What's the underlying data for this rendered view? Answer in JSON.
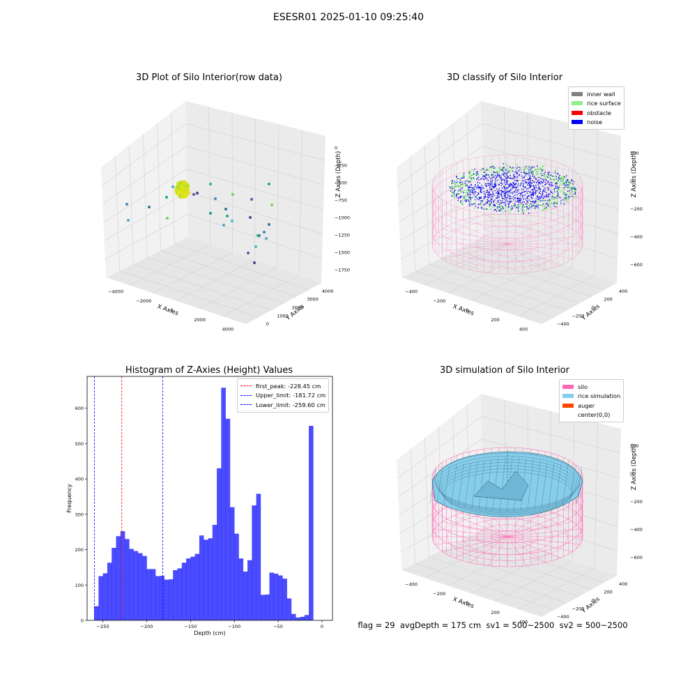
{
  "figure": {
    "title": "ESESR01 2025-01-10 09:25:40",
    "status_line": "flag = 29  avgDepth = 175 cm  sv1 = 500~2500  sv2 = 500~2500"
  },
  "panels": {
    "raw": {
      "title": "3D Plot of Silo Interior(row data)",
      "xlabel": "X Axies",
      "ylabel": "Y Axies",
      "zlabel": "Z Axies (Depth)",
      "xticks": [
        "−4000",
        "−2000",
        "0",
        "2000",
        "4000"
      ],
      "yticks": [
        "0",
        "1000",
        "2000",
        "3000",
        "4000"
      ],
      "zticks": [
        "0",
        "−250",
        "−500",
        "−750",
        "−1000",
        "−1250",
        "−1500",
        "−1750"
      ]
    },
    "classify": {
      "title": "3D classify of Silo Interior",
      "xlabel": "X Axies",
      "ylabel": "Y Axies",
      "zlabel": "Z Axies (Depth)",
      "xticks": [
        "−400",
        "−200",
        "0",
        "200",
        "400"
      ],
      "yticks": [
        "−400",
        "−200",
        "0",
        "200",
        "400"
      ],
      "zticks": [
        "200",
        "0",
        "−200",
        "−400",
        "−600"
      ],
      "legend": [
        {
          "label": "inner wall",
          "color": "#808080"
        },
        {
          "label": "rice surface",
          "color": "#90ee90"
        },
        {
          "label": "obstacle",
          "color": "#ff0000"
        },
        {
          "label": "noise",
          "color": "#0000ff"
        }
      ]
    },
    "histogram": {
      "title": "Histogram of Z-Axies (Height) Values",
      "xlabel": "Depth (cm)",
      "ylabel": "Frequency",
      "legend": [
        {
          "label": "first_peak: -228.45 cm",
          "color": "#ff0000"
        },
        {
          "label": "Upper_limit: -181.72 cm",
          "color": "#0000ff"
        },
        {
          "label": "Lower_limit: -259.60 cm",
          "color": "#0000ff"
        }
      ]
    },
    "simulation": {
      "title": "3D simulation of Silo Interior",
      "xlabel": "X Axies",
      "ylabel": "Y Axies",
      "zlabel": "Z Axies (Depth)",
      "xticks": [
        "−400",
        "−200",
        "0",
        "200",
        "400"
      ],
      "yticks": [
        "−400",
        "−200",
        "0",
        "200",
        "400"
      ],
      "zticks": [
        "200",
        "0",
        "−200",
        "−400",
        "−600"
      ],
      "legend": [
        {
          "label": "silo",
          "color": "#ff69b4"
        },
        {
          "label": "rice simulation",
          "color": "#87ceeb"
        },
        {
          "label": "auger",
          "color": "#ff4500"
        },
        {
          "label": "center(0,0)",
          "color": ""
        }
      ]
    }
  },
  "chart_data": [
    {
      "type": "scatter",
      "title": "3D Plot of Silo Interior(row data)",
      "xlabel": "X Axies",
      "ylabel": "Y Axies",
      "zlabel": "Z Axies (Depth)",
      "xlim": [
        -4500,
        4500
      ],
      "ylim": [
        -500,
        4500
      ],
      "zlim": [
        -1900,
        100
      ],
      "grid": true
    },
    {
      "type": "scatter",
      "title": "3D classify of Silo Interior",
      "xlabel": "X Axies",
      "ylabel": "Y Axies",
      "zlabel": "Z Axies (Depth)",
      "xlim": [
        -500,
        500
      ],
      "ylim": [
        -500,
        500
      ],
      "zlim": [
        -750,
        300
      ],
      "series": [
        {
          "name": "inner wall"
        },
        {
          "name": "rice surface"
        },
        {
          "name": "obstacle"
        },
        {
          "name": "noise"
        }
      ],
      "legend_position": "upper right",
      "grid": true
    },
    {
      "type": "bar",
      "title": "Histogram of Z-Axies (Height) Values",
      "xlabel": "Depth (cm)",
      "ylabel": "Frequency",
      "xlim": [
        -268,
        12
      ],
      "ylim": [
        0,
        690
      ],
      "xticks": [
        -250,
        -200,
        -150,
        -100,
        -50,
        0
      ],
      "yticks": [
        0,
        100,
        200,
        300,
        400,
        500,
        600
      ],
      "bin_start": -260,
      "bin_width": 5,
      "values": [
        40,
        125,
        133,
        163,
        205,
        238,
        252,
        230,
        202,
        196,
        190,
        182,
        145,
        145,
        125,
        126,
        115,
        116,
        142,
        147,
        163,
        175,
        180,
        188,
        240,
        228,
        232,
        270,
        430,
        658,
        570,
        320,
        245,
        175,
        138,
        170,
        325,
        358,
        72,
        73,
        135,
        132,
        127,
        118,
        62,
        18,
        8,
        10,
        15,
        550
      ],
      "color": "#0000ff",
      "vlines": [
        {
          "name": "first_peak: -228.45 cm",
          "x": -228.45,
          "color": "#ff0000"
        },
        {
          "name": "Upper_limit: -181.72 cm",
          "x": -181.72,
          "color": "#0000ff"
        },
        {
          "name": "Lower_limit: -259.60 cm",
          "x": -259.6,
          "color": "#0000ff"
        }
      ],
      "legend_position": "upper right",
      "grid": false
    },
    {
      "type": "area",
      "title": "3D simulation of Silo Interior",
      "xlabel": "X Axies",
      "ylabel": "Y Axies",
      "zlabel": "Z Axies (Depth)",
      "xlim": [
        -500,
        500
      ],
      "ylim": [
        -500,
        500
      ],
      "zlim": [
        -750,
        300
      ],
      "series": [
        {
          "name": "silo"
        },
        {
          "name": "rice simulation"
        },
        {
          "name": "auger"
        },
        {
          "name": "center(0,0)"
        }
      ],
      "legend_position": "upper right",
      "grid": true
    }
  ]
}
